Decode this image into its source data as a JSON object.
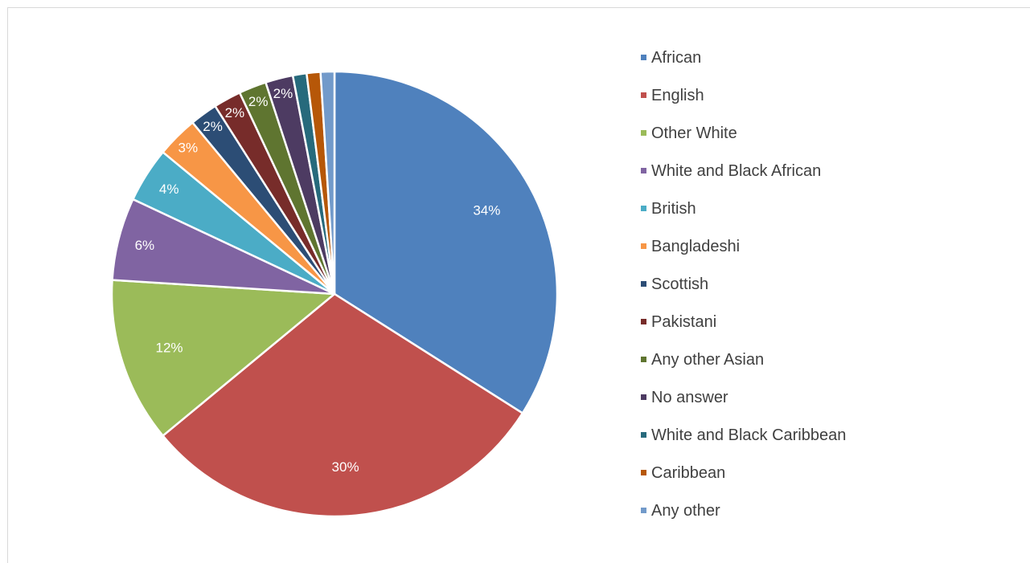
{
  "chart_data": {
    "type": "pie",
    "title": "",
    "start_angle_deg": 0,
    "direction": "clockwise",
    "slices": [
      {
        "label": "African",
        "value": 34,
        "display": "34%",
        "color": "#4f81bd"
      },
      {
        "label": "English",
        "value": 30,
        "display": "30%",
        "color": "#c0504d"
      },
      {
        "label": "Other White",
        "value": 12,
        "display": "12%",
        "color": "#9bbb59"
      },
      {
        "label": "White and Black African",
        "value": 6,
        "display": "6%",
        "color": "#8064a2"
      },
      {
        "label": "British",
        "value": 4,
        "display": "4%",
        "color": "#4bacc6"
      },
      {
        "label": "Bangladeshi",
        "value": 3,
        "display": "3%",
        "color": "#f79646"
      },
      {
        "label": "Scottish",
        "value": 2,
        "display": "2%",
        "color": "#2c4d75"
      },
      {
        "label": "Pakistani",
        "value": 2,
        "display": "2%",
        "color": "#772c2a"
      },
      {
        "label": "Any other Asian",
        "value": 2,
        "display": "2%",
        "color": "#5f7530"
      },
      {
        "label": "No answer",
        "value": 2,
        "display": "2%",
        "color": "#4d3b62"
      },
      {
        "label": "White and Black Caribbean",
        "value": 1,
        "display": "",
        "color": "#276a7c"
      },
      {
        "label": "Caribbean",
        "value": 1,
        "display": "",
        "color": "#b65708"
      },
      {
        "label": "Any other",
        "value": 1,
        "display": "",
        "color": "#729aca"
      }
    ],
    "legend_position": "right"
  }
}
